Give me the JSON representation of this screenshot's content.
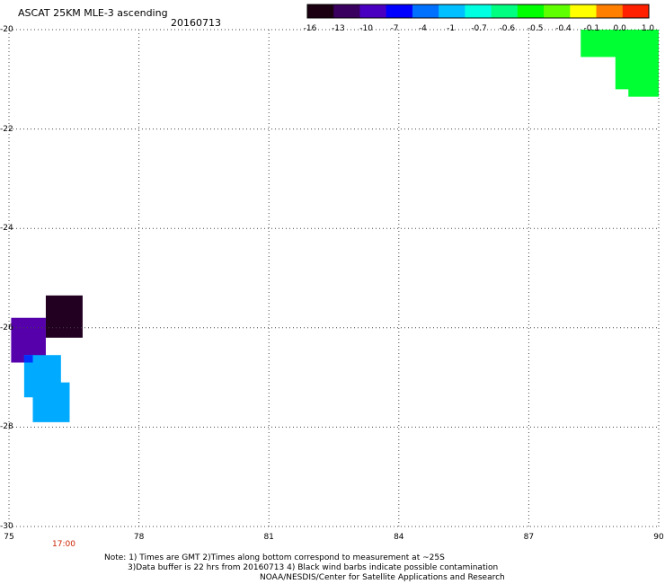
{
  "header": {
    "title": "ASCAT 25KM MLE-3 ascending",
    "date": "20160713"
  },
  "colorbar": {
    "labels": [
      "-16",
      "-13",
      "-10",
      "-7",
      "-4",
      "-1",
      "-0.7",
      "-0.6",
      "-0.5",
      "-0.4",
      "-0.1",
      "0.0",
      "1.0"
    ],
    "colors": [
      "#1a0010",
      "#3a0060",
      "#4a00c0",
      "#0000ff",
      "#0070ff",
      "#00c0ff",
      "#00ffe0",
      "#00ff80",
      "#00ff00",
      "#60ff00",
      "#ffff00",
      "#ff8000",
      "#ff2000"
    ]
  },
  "map": {
    "lon_range": [
      75,
      90
    ],
    "lat_range": [
      -30,
      -20
    ],
    "lon_ticks": [
      "75",
      "78",
      "81",
      "84",
      "87",
      "90"
    ],
    "lat_ticks": [
      "-20",
      "-22",
      "-24",
      "-26",
      "-28",
      "-30"
    ],
    "time_label": "17:00",
    "cells": [
      {
        "lon0": 88.2,
        "lon1": 90.0,
        "lat0": -20.0,
        "lat1": -20.55,
        "value": "-0.5",
        "color": "#00ff33"
      },
      {
        "lon0": 89.0,
        "lon1": 90.0,
        "lat0": -20.5,
        "lat1": -21.2,
        "value": "-0.5",
        "color": "#00ff33"
      },
      {
        "lon0": 89.3,
        "lon1": 90.0,
        "lat0": -21.1,
        "lat1": -21.35,
        "value": "-0.5",
        "color": "#00ff33"
      },
      {
        "lon0": 75.85,
        "lon1": 76.7,
        "lat0": -25.35,
        "lat1": -26.2,
        "value": "-16",
        "color": "#220022"
      },
      {
        "lon0": 75.05,
        "lon1": 75.85,
        "lat0": -25.8,
        "lat1": -26.7,
        "value": "-13",
        "color": "#5500aa"
      },
      {
        "lon0": 75.35,
        "lon1": 76.2,
        "lat0": -26.55,
        "lat1": -27.4,
        "value": "-1",
        "color": "#00aaff"
      },
      {
        "lon0": 75.55,
        "lon1": 76.4,
        "lat0": -27.1,
        "lat1": -27.9,
        "value": "-1",
        "color": "#00aaff"
      },
      {
        "lon0": 75.35,
        "lon1": 75.55,
        "lat0": -26.55,
        "lat1": -26.7,
        "value": "-7",
        "color": "#0033ff"
      }
    ]
  },
  "notes": {
    "line1": "Note: 1) Times are GMT 2)Times along bottom correspond to measurement at ~25S",
    "line2": "3)Data buffer is 22 hrs from 20160713 4) Black wind barbs indicate possible contamination",
    "line3": "NOAA/NESDIS/Center for Satellite Applications and Research"
  }
}
